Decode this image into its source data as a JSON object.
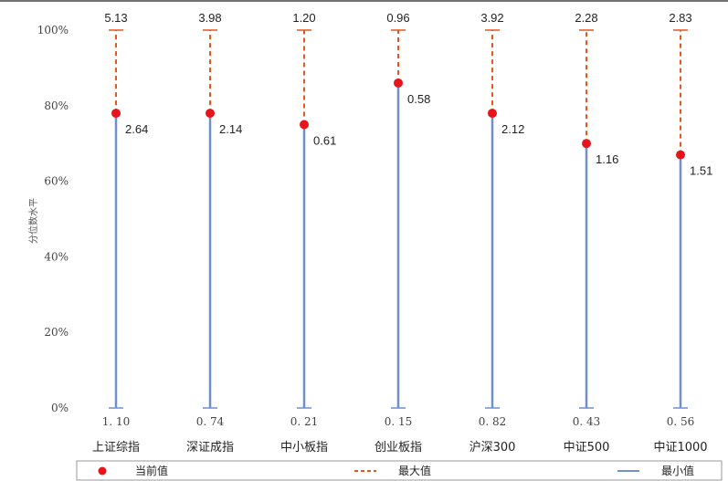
{
  "chart_data": {
    "type": "range-dot",
    "title": "",
    "ylabel": "分位数水平",
    "ylim": [
      0,
      100
    ],
    "yticks": [
      "0%",
      "20%",
      "40%",
      "60%",
      "80%",
      "100%"
    ],
    "categories": [
      "上证综指",
      "深证成指",
      "中小板指",
      "创业板指",
      "沪深300",
      "中证500",
      "中证1000"
    ],
    "max_labels": [
      "5.13",
      "3.98",
      "1.20",
      "0.96",
      "3.92",
      "2.28",
      "2.83"
    ],
    "min_labels": [
      "1.10",
      "0.74",
      "0.21",
      "0.15",
      "0.82",
      "0.43",
      "0.56"
    ],
    "current_labels": [
      "2.64",
      "2.14",
      "0.61",
      "0.58",
      "2.12",
      "1.16",
      "1.51"
    ],
    "current_percentile": [
      78,
      78,
      75,
      86,
      78,
      70,
      67
    ],
    "series": [
      {
        "name": "当前值",
        "color": "#e8141b",
        "style": "dot"
      },
      {
        "name": "最大值",
        "color": "#e8541b",
        "style": "dashed-line"
      },
      {
        "name": "最小值",
        "color": "#6f8fcf",
        "style": "solid-line"
      }
    ],
    "legend_position": "bottom",
    "grid": false
  }
}
